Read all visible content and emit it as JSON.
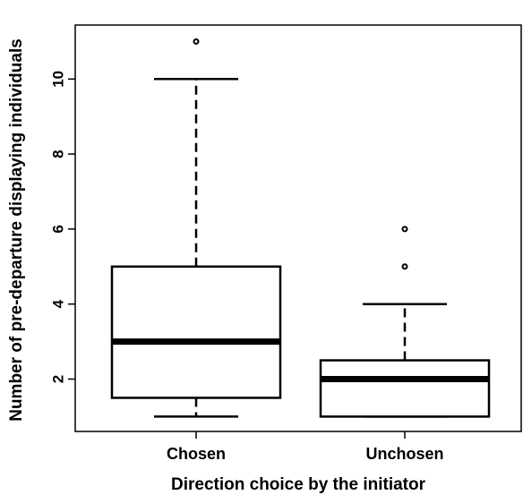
{
  "chart_data": {
    "type": "boxplot",
    "xlabel": "Direction choice by the initiator",
    "ylabel": "Number of pre-departure displaying individuals",
    "categories": [
      "Chosen",
      "Unchosen"
    ],
    "series": [
      {
        "category": "Chosen",
        "min": 1,
        "q1": 1.5,
        "median": 3,
        "q3": 5,
        "max": 10,
        "outliers": [
          11
        ]
      },
      {
        "category": "Unchosen",
        "min": 1,
        "q1": 1,
        "median": 2,
        "q3": 2.5,
        "max": 4,
        "outliers": [
          5,
          6
        ]
      }
    ],
    "y_ticks": [
      2,
      4,
      6,
      8,
      10
    ],
    "ylim": [
      0.6,
      11.5
    ],
    "grid": false,
    "legend": "none"
  }
}
